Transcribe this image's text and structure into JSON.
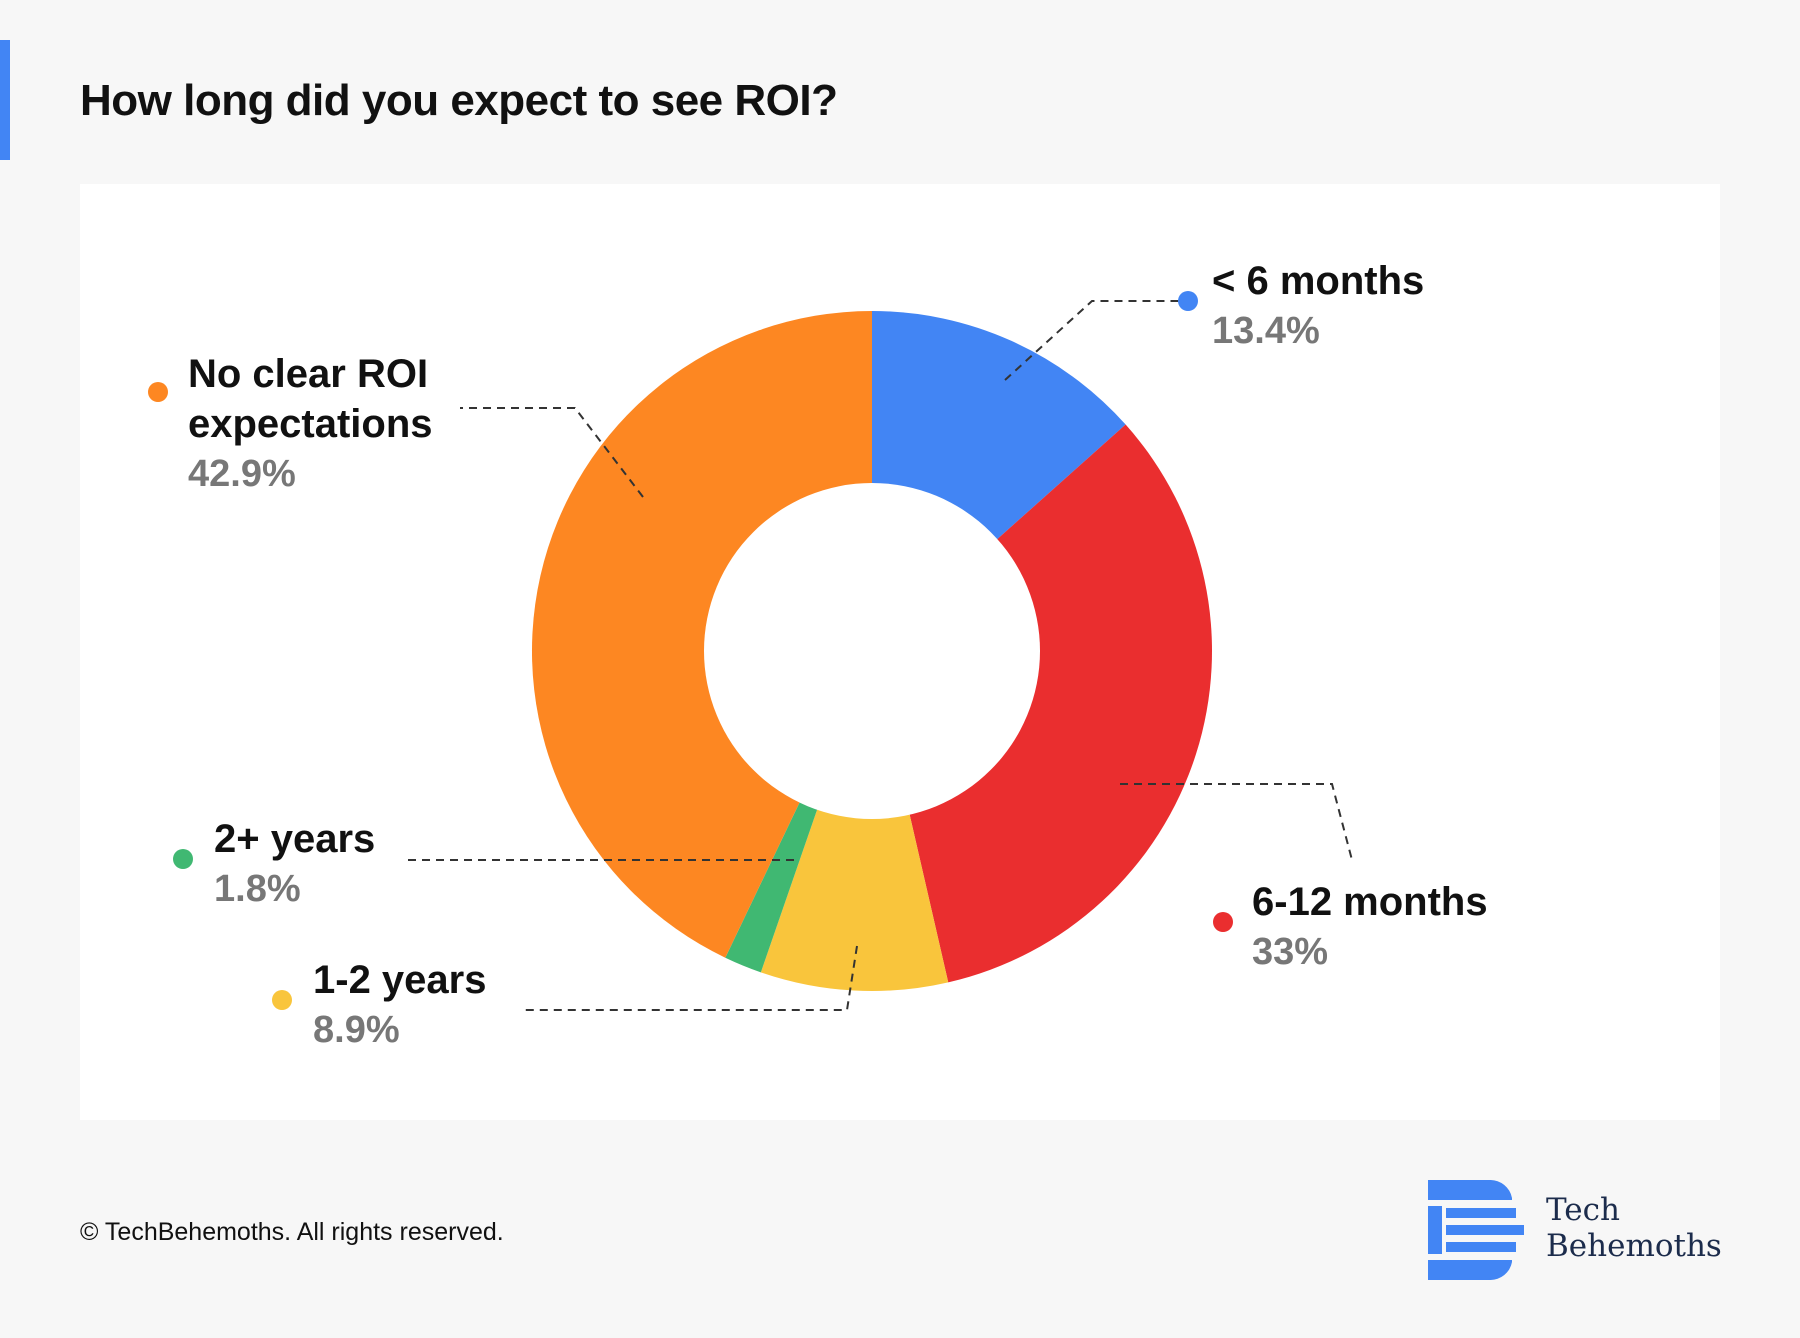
{
  "title": "How long did you expect to see ROI?",
  "colors": {
    "accent": "#4285f4",
    "background": "#f7f7f7",
    "card": "#ffffff"
  },
  "chart_data": {
    "type": "pie",
    "style": "donut",
    "title": "How long did you expect to see ROI?",
    "unit": "%",
    "slices": [
      {
        "name": "< 6 months",
        "value": 13.4,
        "label": "13.4%",
        "color": "#4285f4"
      },
      {
        "name": "6-12 months",
        "value": 33,
        "label": "33%",
        "color": "#ea2e2f"
      },
      {
        "name": "1-2 years",
        "value": 8.9,
        "label": "8.9%",
        "color": "#f9c53c"
      },
      {
        "name": "2+ years",
        "value": 1.8,
        "label": "1.8%",
        "color": "#40b872"
      },
      {
        "name_lines": [
          "No clear ROI",
          "expectations"
        ],
        "name": "No clear ROI expectations",
        "value": 42.9,
        "label": "42.9%",
        "color": "#fd8722"
      }
    ],
    "start_angle": "12 o'clock",
    "direction": "clockwise",
    "legend": "none"
  },
  "footer": {
    "copyright": "© TechBehemoths. All rights reserved."
  },
  "logo": {
    "line1": "Tech",
    "line2": "Behemoths",
    "icon": "techbehemoths-b-logo-icon"
  }
}
